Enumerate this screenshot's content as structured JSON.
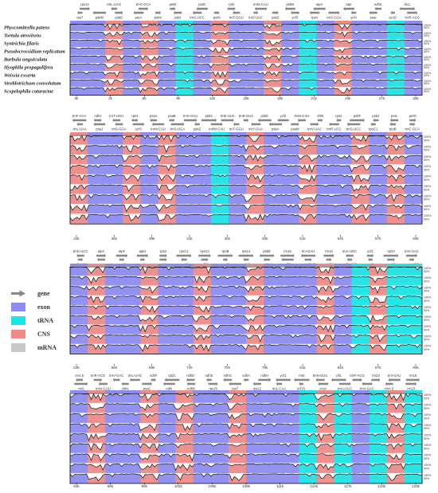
{
  "species": [
    "Physcomitrella patens",
    "Tortula atrovirens",
    "Syntrichia filaris",
    "Pseudocrossidium replicatum",
    "Barbula unguiculata",
    "Hyophila propagulifera",
    "Weissia exserta",
    "Streblotrichum convolutum",
    "Scopelophila cataractae"
  ],
  "percent_labels": [
    "100%",
    "50%"
  ],
  "colors": {
    "exon": "#8b8bf5",
    "trna": "#19e6e6",
    "cns": "#f08a86",
    "mrna": "#c8c8c8",
    "gene_arrow": "#888888"
  },
  "legend": [
    {
      "key": "gene",
      "label": "gene",
      "icon": "gene-arrow"
    },
    {
      "key": "exon",
      "label": "exon",
      "color": "#8b8bf5"
    },
    {
      "key": "trna",
      "label": "tRNA",
      "color": "#19e6e6"
    },
    {
      "key": "cns",
      "label": "CNS",
      "color": "#f08a86"
    },
    {
      "key": "mrna",
      "label": "mRNA",
      "color": "#c8c8c8"
    }
  ],
  "blocks": [
    {
      "ticks": [
        "0k",
        "3k",
        "6k",
        "9k",
        "12k",
        "15k",
        "18k",
        "21k",
        "24k",
        "27k",
        "30k"
      ],
      "genes_top": [
        "rps12",
        "trnL-UAG",
        "trnC-GCA",
        "petB",
        "petD",
        "rpl2",
        "trnM-CAU",
        "psbB",
        "atpA",
        "atpI",
        "ndhK",
        "rbcL"
      ],
      "genes_bottom": [
        "rps7",
        "psbM",
        "psbD",
        "petA",
        "psbK",
        "psbI",
        "trnG-UCC",
        "petN",
        "trnT-GGU",
        "trnE-UUC",
        "psbZ",
        "ycf3",
        "rps4",
        "trnS-GGA",
        "ycf4",
        "psaI",
        "accD",
        "trnR-ACG"
      ],
      "segments": [
        "exon",
        "exon",
        "cns",
        "exon",
        "cns",
        "exon",
        "trna",
        "exon",
        "cns",
        "exon",
        "exon",
        "cns",
        "exon",
        "trna",
        "exon",
        "cns",
        "exon",
        "exon",
        "trna",
        "exon"
      ]
    },
    {
      "ticks": [
        "33k",
        "36k",
        "39k",
        "42k",
        "45k",
        "48k",
        "51k",
        "54k",
        "57k",
        "60k"
      ],
      "genes_top": [
        "trnF-GAA",
        "ndhJ",
        "trnT-UGU",
        "rps4",
        "psaA",
        "psaB",
        "trnS-GCU",
        "psbC",
        "trnE-UUC",
        "trnD-GUC",
        "psbE",
        "ycf2",
        "trnM-CAU",
        "chlB",
        "rps2",
        "psbF",
        "psbJ",
        "petL",
        "petG"
      ],
      "genes_bottom": [
        "trnL-UAA",
        "psaJ",
        "trnS-GGA",
        "ycf3",
        "trnM-CAU",
        "trnS-UGA",
        "psbZ",
        "trnfM-CAU",
        "trnT-GGU",
        "trnY-GUA",
        "psbA",
        "psaM",
        "trnV-UAC",
        "trnR-UCC",
        "trnG-UCC",
        "rpoC1",
        "rpoB",
        "trnC-GCA"
      ],
      "segments": [
        "cns",
        "exon",
        "exon",
        "cns",
        "exon",
        "cns",
        "exon",
        "exon",
        "trna",
        "exon",
        "cns",
        "exon",
        "exon",
        "cns",
        "exon",
        "exon",
        "cns",
        "exon",
        "cns",
        "exon"
      ]
    },
    {
      "ticks": [
        "63k",
        "66k",
        "69k",
        "72k",
        "75k",
        "78k",
        "81k",
        "84k",
        "87k",
        "90k"
      ],
      "genes_top": [
        "trnG-UCC",
        "atpA",
        "atpF",
        "atpH",
        "rps2",
        "rpoC1",
        "rpoC2",
        "rpoB",
        "rps14",
        "psbE",
        "rrn16",
        "trnI-GAU",
        "rrn23",
        "trnA-UGC",
        "ycf1",
        "rpl23",
        "trnV-GAC"
      ],
      "genes_bottom": [
        "trnR-UCU",
        "atpI",
        "rps12",
        "petN",
        "psbM",
        "rps18",
        "rpl32",
        "rps19",
        "rpl16",
        "rpl14",
        "rpl22",
        "trnH-GUG",
        "trnN-GUU",
        "trnR-ACG",
        "rrn5",
        "rrn4.5",
        "trnA-UGC"
      ],
      "segments": [
        "exon",
        "cns",
        "exon",
        "exon",
        "cns",
        "exon",
        "exon",
        "cns",
        "exon",
        "exon",
        "cns",
        "exon",
        "exon",
        "exon",
        "cns",
        "exon",
        "trna",
        "cns",
        "trna",
        "trna"
      ]
    },
    {
      "ticks": [
        "93k",
        "96k",
        "99k",
        "102k",
        "105k",
        "108k",
        "111k",
        "114k",
        "117k",
        "120k",
        "123k"
      ],
      "genes_top": [
        "rrn4.5",
        "trnR-ACG",
        "trnV-GAC",
        "trnL-UAG",
        "ndhF",
        "rpl21",
        "ndhD",
        "ndhE",
        "ndhG",
        "ndhA",
        "ndhH",
        "ycf1",
        "rrn5",
        "trnN-GUU",
        "chlL",
        "trnR-ACG",
        "rrn23",
        "trnI-GAU",
        "rrn16"
      ],
      "genes_bottom": [
        "rrn5",
        "trnN-GUU",
        "chlN",
        "psaC",
        "ndhI",
        "ndhB",
        "rps15",
        "rps7",
        "rps12",
        "trnL-CAA",
        "ycf15",
        "ccsA",
        "trnA-UGC",
        "trnV-GAC",
        "rrn4.5",
        "rrn23"
      ],
      "segments": [
        "exon",
        "cns",
        "exon",
        "exon",
        "cns",
        "exon",
        "cns",
        "exon",
        "exon",
        "cns",
        "exon",
        "exon",
        "exon",
        "trna",
        "cns",
        "trna",
        "exon",
        "trna",
        "cns",
        "trna"
      ]
    }
  ]
}
